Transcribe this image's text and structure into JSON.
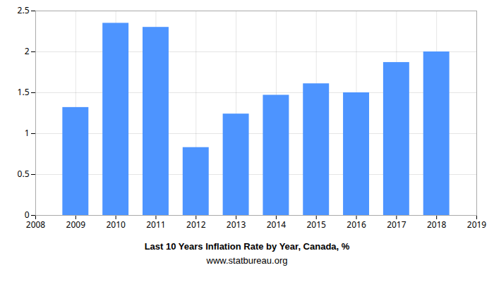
{
  "chart_data": {
    "type": "bar",
    "title": "Last 10 Years Inflation Rate by Year, Canada, %",
    "subtitle": "www.statbureau.org",
    "x": [
      2009,
      2010,
      2011,
      2012,
      2013,
      2014,
      2015,
      2016,
      2017,
      2018
    ],
    "values": [
      1.32,
      2.35,
      2.3,
      0.83,
      1.24,
      1.47,
      1.61,
      1.5,
      1.87,
      2.0
    ],
    "color": "#4d94ff",
    "xlim": [
      2008,
      2019
    ],
    "xticks": [
      2008,
      2009,
      2010,
      2011,
      2012,
      2013,
      2014,
      2015,
      2016,
      2017,
      2018,
      2019
    ],
    "ylim": [
      0,
      2.5
    ],
    "yticks": [
      0,
      0.5,
      1,
      1.5,
      2,
      2.5
    ],
    "grid": true
  }
}
